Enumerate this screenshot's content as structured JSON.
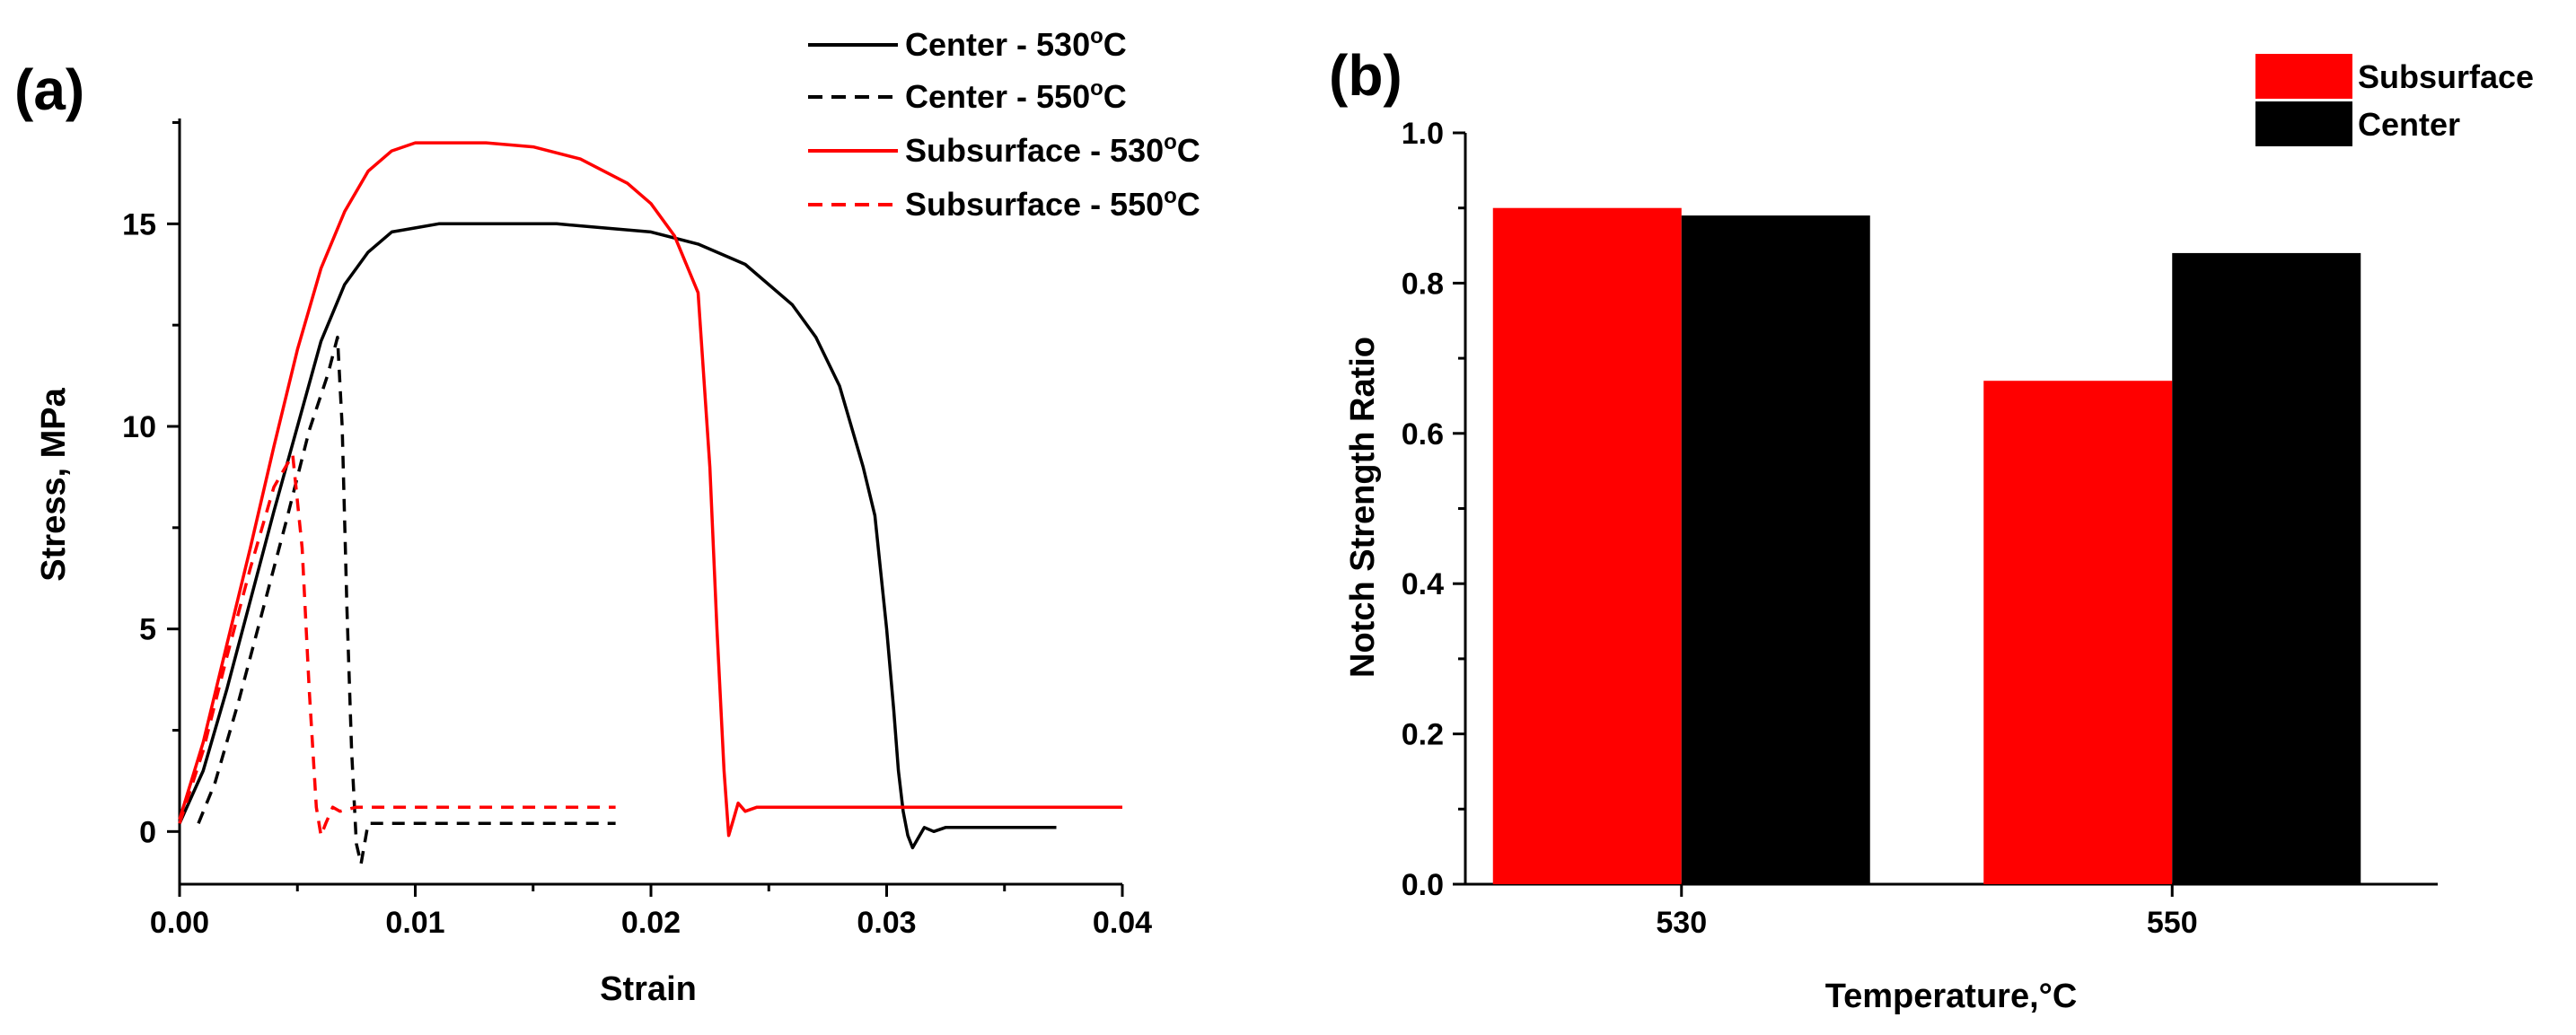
{
  "colors": {
    "red": "#ff0000",
    "black": "#000000"
  },
  "chart_data": [
    {
      "type": "line",
      "panel_label": "(a)",
      "xlabel": "Strain",
      "ylabel": "Stress, MPa",
      "xlim": [
        0,
        0.04
      ],
      "ylim": [
        -1.3,
        17.6
      ],
      "xticks": [
        0,
        0.01,
        0.02,
        0.03,
        0.04
      ],
      "xtick_labels": [
        "0.00",
        "0.01",
        "0.02",
        "0.03",
        "0.04"
      ],
      "yticks": [
        0,
        5,
        10,
        15
      ],
      "ytick_labels": [
        "0",
        "5",
        "10",
        "15"
      ],
      "legend_position": "top-right",
      "series": [
        {
          "name": "Center - 530°C",
          "legend": {
            "prefix": "Center - 530",
            "sup": "o",
            "suffix": "C"
          },
          "color": "#000000",
          "dash": "solid",
          "x": [
            0.0,
            0.001,
            0.002,
            0.003,
            0.004,
            0.005,
            0.006,
            0.007,
            0.008,
            0.009,
            0.01,
            0.011,
            0.013,
            0.016,
            0.018,
            0.02,
            0.022,
            0.024,
            0.026,
            0.027,
            0.028,
            0.029,
            0.0295,
            0.03,
            0.0303,
            0.0305,
            0.0307,
            0.0309,
            0.0311,
            0.0313,
            0.0316,
            0.032,
            0.0325,
            0.033,
            0.035,
            0.0372
          ],
          "y": [
            0.2,
            1.5,
            3.5,
            5.7,
            7.9,
            10.0,
            12.1,
            13.5,
            14.3,
            14.8,
            14.9,
            15.0,
            15.0,
            15.0,
            14.9,
            14.8,
            14.5,
            14.0,
            13.0,
            12.2,
            11.0,
            9.0,
            7.8,
            5.0,
            3.0,
            1.5,
            0.5,
            -0.1,
            -0.4,
            -0.2,
            0.1,
            0.0,
            0.1,
            0.1,
            0.1,
            0.1
          ]
        },
        {
          "name": "Center - 550°C",
          "legend": {
            "prefix": "Center - 550",
            "sup": "o",
            "suffix": "C"
          },
          "color": "#000000",
          "dash": "dashed",
          "x": [
            0.0008,
            0.0015,
            0.0025,
            0.0035,
            0.0045,
            0.0055,
            0.0063,
            0.0067,
            0.0069,
            0.0071,
            0.0073,
            0.0075,
            0.0077,
            0.008,
            0.0085,
            0.01,
            0.015,
            0.0185
          ],
          "y": [
            0.2,
            1.2,
            3.2,
            5.4,
            7.6,
            9.9,
            11.3,
            12.2,
            10.0,
            5.5,
            2.0,
            -0.3,
            -0.8,
            0.2,
            0.2,
            0.2,
            0.2,
            0.2
          ]
        },
        {
          "name": "Subsurface - 530°C",
          "legend": {
            "prefix": "Subsurface - 530",
            "sup": "o",
            "suffix": "C"
          },
          "color": "#ff0000",
          "dash": "solid",
          "x": [
            0.0,
            0.001,
            0.002,
            0.003,
            0.004,
            0.005,
            0.006,
            0.007,
            0.008,
            0.009,
            0.01,
            0.011,
            0.013,
            0.015,
            0.017,
            0.019,
            0.02,
            0.021,
            0.022,
            0.0225,
            0.0228,
            0.0231,
            0.0233,
            0.0235,
            0.0237,
            0.024,
            0.0245,
            0.025,
            0.026,
            0.028,
            0.03,
            0.035,
            0.04
          ],
          "y": [
            0.3,
            2.2,
            4.6,
            7.0,
            9.5,
            11.9,
            13.9,
            15.3,
            16.3,
            16.8,
            17.0,
            17.0,
            17.0,
            16.9,
            16.6,
            16.0,
            15.5,
            14.7,
            13.3,
            9.0,
            5.0,
            1.5,
            -0.1,
            0.3,
            0.7,
            0.5,
            0.6,
            0.6,
            0.6,
            0.6,
            0.6,
            0.6,
            0.6
          ]
        },
        {
          "name": "Subsurface - 550°C",
          "legend": {
            "prefix": "Subsurface - 550",
            "sup": "o",
            "suffix": "C"
          },
          "color": "#ff0000",
          "dash": "dashed",
          "x": [
            0.0,
            0.001,
            0.002,
            0.003,
            0.004,
            0.0048,
            0.0052,
            0.0055,
            0.0058,
            0.006,
            0.0062,
            0.0065,
            0.0068,
            0.0075,
            0.01,
            0.015,
            0.0185
          ],
          "y": [
            0.2,
            2.0,
            4.3,
            6.5,
            8.5,
            9.3,
            7.0,
            3.5,
            0.6,
            -0.1,
            0.2,
            0.6,
            0.5,
            0.6,
            0.6,
            0.6,
            0.6
          ]
        }
      ]
    },
    {
      "type": "bar",
      "panel_label": "(b)",
      "xlabel": "Temperature,°C",
      "ylabel": "Notch Strength Ratio",
      "categories": [
        "530",
        "550"
      ],
      "ylim": [
        0,
        1.0
      ],
      "yticks": [
        0.0,
        0.2,
        0.4,
        0.6,
        0.8,
        1.0
      ],
      "ytick_labels": [
        "0.0",
        "0.2",
        "0.4",
        "0.6",
        "0.8",
        "1.0"
      ],
      "legend_position": "top-right",
      "series": [
        {
          "name": "Subsurface",
          "color": "#ff0000",
          "values": [
            0.9,
            0.67
          ]
        },
        {
          "name": "Center",
          "color": "#000000",
          "values": [
            0.89,
            0.84
          ]
        }
      ]
    }
  ]
}
